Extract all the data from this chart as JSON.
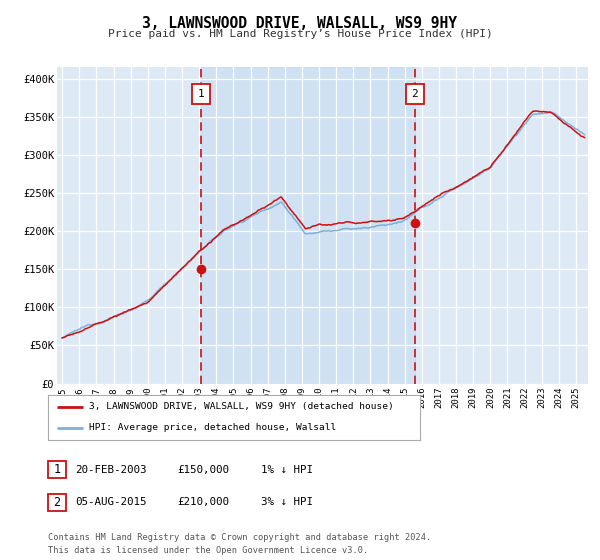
{
  "title": "3, LAWNSWOOD DRIVE, WALSALL, WS9 9HY",
  "subtitle": "Price paid vs. HM Land Registry’s House Price Index (HPI)",
  "ylabel_ticks": [
    "£0",
    "£50K",
    "£100K",
    "£150K",
    "£200K",
    "£250K",
    "£300K",
    "£350K",
    "£400K"
  ],
  "ytick_values": [
    0,
    50000,
    100000,
    150000,
    200000,
    250000,
    300000,
    350000,
    400000
  ],
  "ylim": [
    0,
    415000
  ],
  "hpi_color": "#7fb0d8",
  "price_color": "#cc1111",
  "bg_color": "#ddeaf6",
  "grid_color": "#ffffff",
  "sale1_year": 2003.125,
  "sale1_price": 150000,
  "sale2_year": 2015.583,
  "sale2_price": 210000,
  "legend_entry1": "3, LAWNSWOOD DRIVE, WALSALL, WS9 9HY (detached house)",
  "legend_entry2": "HPI: Average price, detached house, Walsall",
  "table_row1": [
    "1",
    "20-FEB-2003",
    "£150,000",
    "1% ↓ HPI"
  ],
  "table_row2": [
    "2",
    "05-AUG-2015",
    "£210,000",
    "3% ↓ HPI"
  ],
  "footer_line1": "Contains HM Land Registry data © Crown copyright and database right 2024.",
  "footer_line2": "This data is licensed under the Open Government Licence v3.0.",
  "xstart": 1994.7,
  "xend": 2025.7,
  "xticks": [
    1995,
    1996,
    1997,
    1998,
    1999,
    2000,
    2001,
    2002,
    2003,
    2004,
    2005,
    2006,
    2007,
    2008,
    2009,
    2010,
    2011,
    2012,
    2013,
    2014,
    2015,
    2016,
    2017,
    2018,
    2019,
    2020,
    2021,
    2022,
    2023,
    2024,
    2025
  ],
  "figwidth": 6.0,
  "figheight": 5.6,
  "dpi": 100
}
